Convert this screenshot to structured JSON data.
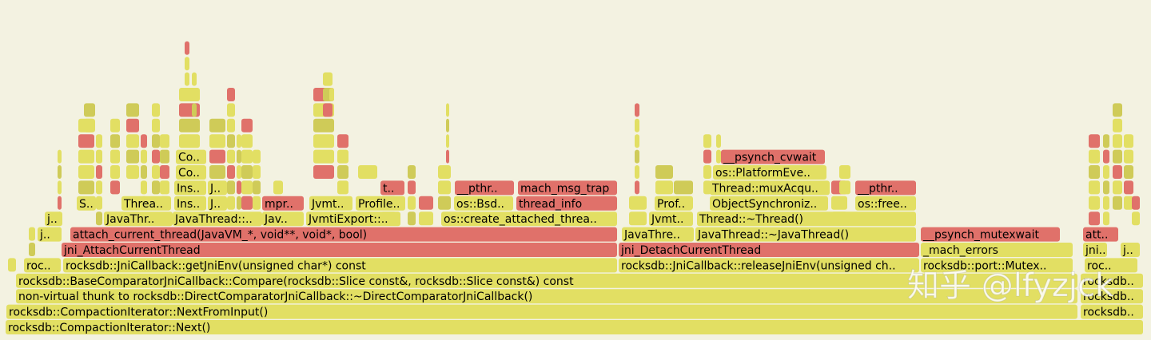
{
  "frames": [
    {
      "label": "rocksdb::CompactionIterator::Next()"
    },
    {
      "label": "rocksdb::CompactionIterator::NextFromInput()"
    },
    {
      "label": "rocksdb.."
    },
    {
      "label": "non-virtual thunk to rocksdb::DirectComparatorJniCallback::~DirectComparatorJniCallback()"
    },
    {
      "label": "rocksdb.."
    },
    {
      "label": "rocksdb::BaseComparatorJniCallback::Compare(rocksdb::Slice const&, rocksdb::Slice const&) const"
    },
    {
      "label": "rocksdb.."
    },
    {
      "label": "roc.."
    },
    {
      "label": "rocksdb::JniCallback::getJniEnv(unsigned char*) const"
    },
    {
      "label": "rocksdb::JniCallback::releaseJniEnv(unsigned ch.."
    },
    {
      "label": "rocksdb::port::Mutex.."
    },
    {
      "label": "roc.."
    },
    {
      "label": "jni_AttachCurrentThread"
    },
    {
      "label": "jni_DetachCurrentThread"
    },
    {
      "label": "_mach_errors"
    },
    {
      "label": "jni.."
    },
    {
      "label": "j.."
    },
    {
      "label": "j.."
    },
    {
      "label": "attach_current_thread(JavaVM_*, void**, void*, bool)"
    },
    {
      "label": "JavaThre.."
    },
    {
      "label": "JavaThread::~JavaThread()"
    },
    {
      "label": "__psynch_mutexwait"
    },
    {
      "label": "att.."
    },
    {
      "label": "j.."
    },
    {
      "label": "JavaThr.."
    },
    {
      "label": "JavaThread::.."
    },
    {
      "label": "Jav.."
    },
    {
      "label": "JvmtiExport::.."
    },
    {
      "label": "os::create_attached_threa.."
    },
    {
      "label": "Jvmt.."
    },
    {
      "label": "Thread::~Thread()"
    },
    {
      "label": "S.."
    },
    {
      "label": "Threa.."
    },
    {
      "label": "Ins.."
    },
    {
      "label": "J.."
    },
    {
      "label": "mpr.."
    },
    {
      "label": "Jvmt.."
    },
    {
      "label": "Profile.."
    },
    {
      "label": "os::Bsd.."
    },
    {
      "label": "thread_info"
    },
    {
      "label": "Prof.."
    },
    {
      "label": "ObjectSynchroniz.."
    },
    {
      "label": "os::free.."
    },
    {
      "label": "Ins.."
    },
    {
      "label": "J.."
    },
    {
      "label": "t.."
    },
    {
      "label": "__pthr.."
    },
    {
      "label": "mach_msg_trap"
    },
    {
      "label": "Thread::muxAcqu.."
    },
    {
      "label": "__pthr.."
    },
    {
      "label": "Co.."
    },
    {
      "label": "os::PlatformEve.."
    },
    {
      "label": "Co.."
    },
    {
      "label": "__psynch_cvwait"
    }
  ],
  "watermark": "知乎 @lfyzjck"
}
